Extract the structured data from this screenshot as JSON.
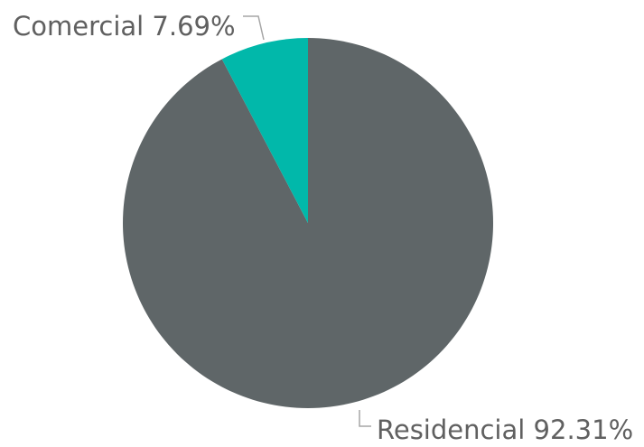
{
  "chart_data": {
    "type": "pie",
    "title": "",
    "categories": [
      "Residencial",
      "Comercial"
    ],
    "values": [
      92.31,
      7.69
    ],
    "value_suffix": "%",
    "colors": [
      "#5f6668",
      "#01b8aa"
    ],
    "start": "12 o'clock",
    "direction": "clockwise",
    "legend": "none",
    "data_labels": [
      {
        "category": "Residencial",
        "value": "92.31%"
      },
      {
        "category": "Comercial",
        "value": "7.69%"
      }
    ]
  }
}
